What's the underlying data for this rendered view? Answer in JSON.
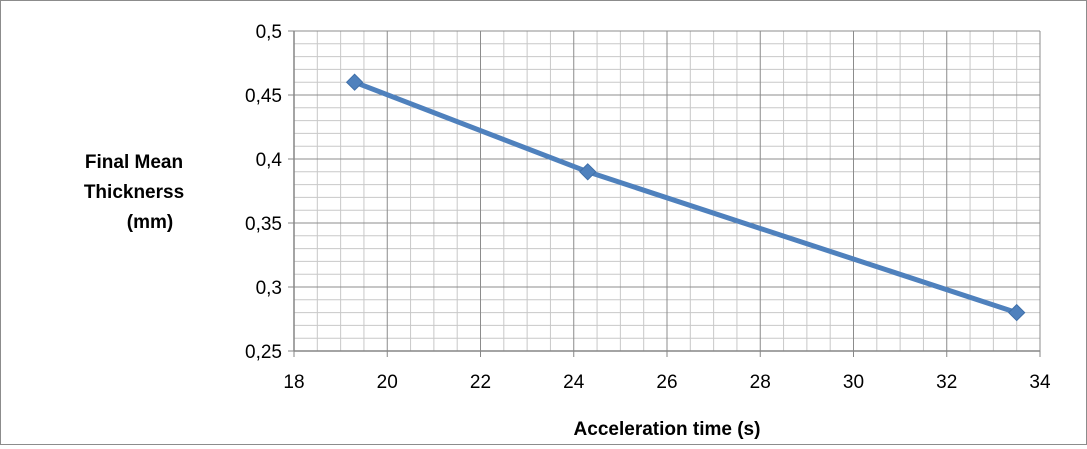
{
  "chart_data": {
    "type": "line",
    "title": "",
    "xlabel": "Acceleration time (s)",
    "ylabel_lines": [
      "Final Mean",
      "Thicknerss",
      "(mm)"
    ],
    "xlim": [
      18,
      34
    ],
    "ylim": [
      0.25,
      0.5
    ],
    "x_ticks": [
      18,
      20,
      22,
      24,
      26,
      28,
      30,
      32,
      34
    ],
    "x_tick_labels": [
      "18",
      "20",
      "22",
      "24",
      "26",
      "28",
      "30",
      "32",
      "34"
    ],
    "y_ticks": [
      0.25,
      0.3,
      0.35,
      0.4,
      0.45,
      0.5
    ],
    "y_tick_labels": [
      "0,25",
      "0,3",
      "0,35",
      "0,4",
      "0,45",
      "0,5"
    ],
    "grid": true,
    "legend": "none",
    "series": [
      {
        "color": "#4f81bd",
        "marker": "diamond",
        "x": [
          19.3,
          24.3,
          33.5
        ],
        "y": [
          0.46,
          0.39,
          0.28
        ]
      }
    ]
  }
}
